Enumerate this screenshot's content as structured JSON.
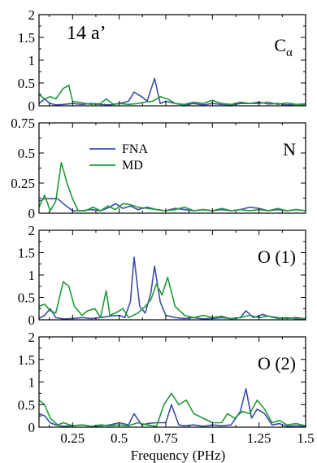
{
  "chart_data": {
    "type": "line",
    "corner_label": "14 a’",
    "xlabel": "Frequency (PHz)",
    "xlim": [
      0.07,
      1.5
    ],
    "xticks": [
      0.25,
      0.5,
      0.75,
      1,
      1.25,
      1.5
    ],
    "xtick_labels": [
      "0.25",
      "0.5",
      "0.75",
      "1",
      "1.25",
      "1.5"
    ],
    "colors": {
      "FNA": "#3b4fa6",
      "MD": "#1f9a3a"
    },
    "legend": {
      "placement": "upper-left",
      "panel": 1,
      "entries": [
        "FNA",
        "MD"
      ]
    },
    "panels": [
      {
        "name": "C",
        "name_sub": "α",
        "ylim": [
          0,
          2
        ],
        "yticks": [
          0,
          0.5,
          1,
          1.5,
          2
        ],
        "ytick_labels": [
          "0",
          "0.5",
          "1",
          "1.5",
          "2"
        ],
        "series": [
          {
            "name": "FNA",
            "x": [
              0.07,
              0.1,
              0.13,
              0.16,
              0.2,
              0.25,
              0.3,
              0.35,
              0.4,
              0.45,
              0.5,
              0.55,
              0.58,
              0.62,
              0.65,
              0.69,
              0.72,
              0.75,
              0.8,
              0.85,
              0.9,
              0.95,
              1.0,
              1.05,
              1.1,
              1.15,
              1.2,
              1.25,
              1.3,
              1.35,
              1.4,
              1.45,
              1.5
            ],
            "y": [
              0.05,
              0.15,
              0.05,
              0.02,
              0.03,
              0.05,
              0.03,
              0.05,
              0.03,
              0.02,
              0.05,
              0.1,
              0.3,
              0.2,
              0.1,
              0.6,
              0.05,
              0.1,
              0.05,
              0.02,
              0.05,
              0.02,
              0.05,
              0.03,
              0.02,
              0.05,
              0.05,
              0.08,
              0.04,
              0.05,
              0.02,
              0.03,
              0.04
            ]
          },
          {
            "name": "MD",
            "x": [
              0.07,
              0.1,
              0.13,
              0.16,
              0.2,
              0.23,
              0.25,
              0.28,
              0.32,
              0.35,
              0.4,
              0.43,
              0.47,
              0.5,
              0.55,
              0.6,
              0.64,
              0.68,
              0.72,
              0.76,
              0.8,
              0.85,
              0.9,
              0.95,
              1.0,
              1.05,
              1.1,
              1.15,
              1.2,
              1.25,
              1.3,
              1.35,
              1.4,
              1.45,
              1.5
            ],
            "y": [
              0.25,
              0.15,
              0.2,
              0.15,
              0.38,
              0.45,
              0.1,
              0.08,
              0.05,
              0.03,
              0.05,
              0.15,
              0.03,
              0.05,
              0.03,
              0.05,
              0.08,
              0.1,
              0.2,
              0.15,
              0.05,
              0.03,
              0.08,
              0.05,
              0.12,
              0.05,
              0.03,
              0.08,
              0.05,
              0.05,
              0.08,
              0.03,
              0.06,
              0.03,
              0.02
            ]
          }
        ]
      },
      {
        "name": "N",
        "name_sub": "",
        "ylim": [
          0,
          0.75
        ],
        "yticks": [
          0,
          0.25,
          0.5,
          0.75
        ],
        "ytick_labels": [
          "0",
          "0.25",
          "0.5",
          "0.75"
        ],
        "series": [
          {
            "name": "FNA",
            "x": [
              0.07,
              0.1,
              0.13,
              0.17,
              0.2,
              0.25,
              0.3,
              0.35,
              0.4,
              0.45,
              0.48,
              0.52,
              0.56,
              0.6,
              0.65,
              0.7,
              0.75,
              0.8,
              0.85,
              0.9,
              0.95,
              1.0,
              1.05,
              1.1,
              1.15,
              1.2,
              1.25,
              1.3,
              1.35,
              1.4,
              1.45,
              1.5
            ],
            "y": [
              0.1,
              0.12,
              0.12,
              0.12,
              0.08,
              0.02,
              0.02,
              0.03,
              0.02,
              0.05,
              0.08,
              0.04,
              0.06,
              0.03,
              0.05,
              0.03,
              0.02,
              0.04,
              0.03,
              0.02,
              0.03,
              0.02,
              0.03,
              0.02,
              0.03,
              0.05,
              0.04,
              0.02,
              0.03,
              0.02,
              0.03,
              0.02
            ]
          },
          {
            "name": "MD",
            "x": [
              0.07,
              0.1,
              0.13,
              0.16,
              0.19,
              0.22,
              0.25,
              0.28,
              0.32,
              0.36,
              0.4,
              0.44,
              0.48,
              0.52,
              0.56,
              0.6,
              0.65,
              0.7,
              0.75,
              0.8,
              0.85,
              0.9,
              0.95,
              1.0,
              1.05,
              1.1,
              1.15,
              1.2,
              1.25,
              1.3,
              1.35,
              1.4,
              1.45,
              1.5
            ],
            "y": [
              0.05,
              0.15,
              0.02,
              0.1,
              0.42,
              0.25,
              0.12,
              0.02,
              0.02,
              0.05,
              0.02,
              0.06,
              0.03,
              0.08,
              0.07,
              0.05,
              0.04,
              0.03,
              0.02,
              0.03,
              0.05,
              0.02,
              0.03,
              0.02,
              0.04,
              0.02,
              0.03,
              0.02,
              0.03,
              0.02,
              0.04,
              0.02,
              0.03,
              0.02
            ]
          }
        ]
      },
      {
        "name": "O (1)",
        "name_sub": "",
        "ylim": [
          0,
          2
        ],
        "yticks": [
          0,
          0.5,
          1,
          1.5,
          2
        ],
        "ytick_labels": [
          "0",
          "0.5",
          "1",
          "1.5",
          "2"
        ],
        "series": [
          {
            "name": "FNA",
            "x": [
              0.07,
              0.1,
              0.13,
              0.16,
              0.2,
              0.25,
              0.3,
              0.35,
              0.4,
              0.45,
              0.5,
              0.53,
              0.56,
              0.58,
              0.61,
              0.64,
              0.67,
              0.69,
              0.72,
              0.75,
              0.8,
              0.85,
              0.9,
              0.95,
              1.0,
              1.05,
              1.1,
              1.15,
              1.18,
              1.22,
              1.27,
              1.3,
              1.35,
              1.4,
              1.45,
              1.5
            ],
            "y": [
              0.03,
              0.1,
              0.25,
              0.05,
              0.02,
              0.03,
              0.05,
              0.03,
              0.05,
              0.08,
              0.1,
              0.05,
              0.4,
              1.4,
              0.3,
              0.15,
              0.6,
              1.2,
              0.4,
              0.1,
              0.05,
              0.03,
              0.05,
              0.02,
              0.03,
              0.05,
              0.03,
              0.05,
              0.2,
              0.05,
              0.12,
              0.08,
              0.05,
              0.03,
              0.05,
              0.02
            ]
          },
          {
            "name": "MD",
            "x": [
              0.07,
              0.1,
              0.13,
              0.16,
              0.2,
              0.23,
              0.26,
              0.3,
              0.33,
              0.37,
              0.4,
              0.43,
              0.45,
              0.48,
              0.52,
              0.55,
              0.6,
              0.64,
              0.67,
              0.7,
              0.73,
              0.76,
              0.8,
              0.85,
              0.9,
              0.95,
              1.0,
              1.05,
              1.1,
              1.15,
              1.2,
              1.25,
              1.3,
              1.35,
              1.4,
              1.45,
              1.5
            ],
            "y": [
              0.3,
              0.35,
              0.2,
              0.15,
              0.85,
              0.75,
              0.3,
              0.1,
              0.2,
              0.25,
              0.05,
              0.65,
              0.1,
              0.15,
              0.25,
              0.05,
              0.15,
              0.3,
              0.45,
              0.8,
              0.55,
              0.95,
              0.3,
              0.1,
              0.05,
              0.1,
              0.05,
              0.08,
              0.02,
              0.05,
              0.1,
              0.05,
              0.08,
              0.03,
              0.05,
              0.02,
              0.03
            ]
          }
        ]
      },
      {
        "name": "O (2)",
        "name_sub": "",
        "ylim": [
          0,
          2
        ],
        "yticks": [
          0,
          0.5,
          1,
          1.5,
          2
        ],
        "ytick_labels": [
          "0",
          "0.5",
          "1",
          "1.5",
          "2"
        ],
        "series": [
          {
            "name": "FNA",
            "x": [
              0.07,
              0.1,
              0.13,
              0.16,
              0.2,
              0.25,
              0.3,
              0.35,
              0.4,
              0.45,
              0.5,
              0.55,
              0.58,
              0.62,
              0.65,
              0.7,
              0.75,
              0.78,
              0.82,
              0.85,
              0.9,
              0.95,
              1.0,
              1.05,
              1.1,
              1.15,
              1.18,
              1.21,
              1.24,
              1.28,
              1.32,
              1.36,
              1.4,
              1.45,
              1.5
            ],
            "y": [
              0.3,
              0.25,
              0.1,
              0.05,
              0.02,
              0.03,
              0.05,
              0.02,
              0.03,
              0.05,
              0.1,
              0.05,
              0.3,
              0.05,
              0.08,
              0.1,
              0.1,
              0.5,
              0.05,
              0.03,
              0.05,
              0.02,
              0.05,
              0.03,
              0.05,
              0.35,
              0.85,
              0.2,
              0.4,
              0.3,
              0.05,
              0.08,
              0.02,
              0.03,
              0.02
            ]
          },
          {
            "name": "MD",
            "x": [
              0.07,
              0.1,
              0.13,
              0.17,
              0.2,
              0.25,
              0.3,
              0.35,
              0.4,
              0.45,
              0.5,
              0.55,
              0.6,
              0.65,
              0.7,
              0.74,
              0.78,
              0.82,
              0.86,
              0.9,
              0.95,
              1.0,
              1.05,
              1.08,
              1.12,
              1.16,
              1.2,
              1.24,
              1.28,
              1.32,
              1.36,
              1.4,
              1.45,
              1.5
            ],
            "y": [
              0.6,
              0.5,
              0.2,
              0.05,
              0.1,
              0.03,
              0.05,
              0.02,
              0.05,
              0.03,
              0.05,
              0.03,
              0.1,
              0.05,
              0.02,
              0.5,
              0.75,
              0.5,
              0.6,
              0.3,
              0.2,
              0.1,
              0.1,
              0.3,
              0.2,
              0.35,
              0.3,
              0.6,
              0.4,
              0.1,
              0.15,
              0.05,
              0.08,
              0.03
            ]
          }
        ]
      }
    ]
  }
}
